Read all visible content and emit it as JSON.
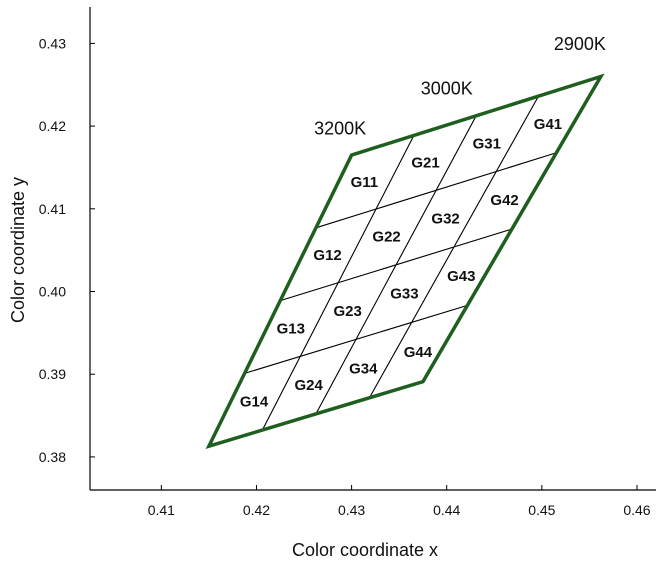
{
  "chart_data": {
    "type": "diagram-grid",
    "xlabel": "Color coordinate x",
    "ylabel": "Color coordinate y",
    "xlim": [
      0.4025,
      0.462
    ],
    "ylim": [
      0.376,
      0.4344
    ],
    "x_ticks": [
      {
        "value": 0.41,
        "label": "0.41"
      },
      {
        "value": 0.42,
        "label": "0.42"
      },
      {
        "value": 0.43,
        "label": "0.43"
      },
      {
        "value": 0.44,
        "label": "0.44"
      },
      {
        "value": 0.45,
        "label": "0.45"
      },
      {
        "value": 0.46,
        "label": "0.46"
      }
    ],
    "y_ticks": [
      {
        "value": 0.38,
        "label": "0.38"
      },
      {
        "value": 0.39,
        "label": "0.39"
      },
      {
        "value": 0.4,
        "label": "0.40"
      },
      {
        "value": 0.41,
        "label": "0.41"
      },
      {
        "value": 0.42,
        "label": "0.42"
      },
      {
        "value": 0.43,
        "label": "0.43"
      }
    ],
    "outline_color": "#1e5e1e",
    "corners": {
      "top_left": [
        0.43,
        0.4165
      ],
      "top_right": [
        0.4562,
        0.426
      ],
      "bottom_left": [
        0.415,
        0.3813
      ],
      "bottom_right": [
        0.4375,
        0.3891
      ]
    },
    "temperature_labels": [
      {
        "text": "3200K",
        "x": 0.4288,
        "y": 0.419
      },
      {
        "text": "3000K",
        "x": 0.44,
        "y": 0.4238
      },
      {
        "text": "2900K",
        "x": 0.454,
        "y": 0.4292
      }
    ],
    "cells": [
      {
        "id": "G11",
        "col": 0,
        "row": 0
      },
      {
        "id": "G21",
        "col": 1,
        "row": 0
      },
      {
        "id": "G31",
        "col": 2,
        "row": 0
      },
      {
        "id": "G41",
        "col": 3,
        "row": 0
      },
      {
        "id": "G12",
        "col": 0,
        "row": 1
      },
      {
        "id": "G22",
        "col": 1,
        "row": 1
      },
      {
        "id": "G32",
        "col": 2,
        "row": 1
      },
      {
        "id": "G42",
        "col": 3,
        "row": 1
      },
      {
        "id": "G13",
        "col": 0,
        "row": 2
      },
      {
        "id": "G23",
        "col": 1,
        "row": 2
      },
      {
        "id": "G33",
        "col": 2,
        "row": 2
      },
      {
        "id": "G43",
        "col": 3,
        "row": 2
      },
      {
        "id": "G14",
        "col": 0,
        "row": 3
      },
      {
        "id": "G24",
        "col": 1,
        "row": 3
      },
      {
        "id": "G34",
        "col": 2,
        "row": 3
      },
      {
        "id": "G44",
        "col": 3,
        "row": 3
      }
    ],
    "grid_divisions": 4
  }
}
